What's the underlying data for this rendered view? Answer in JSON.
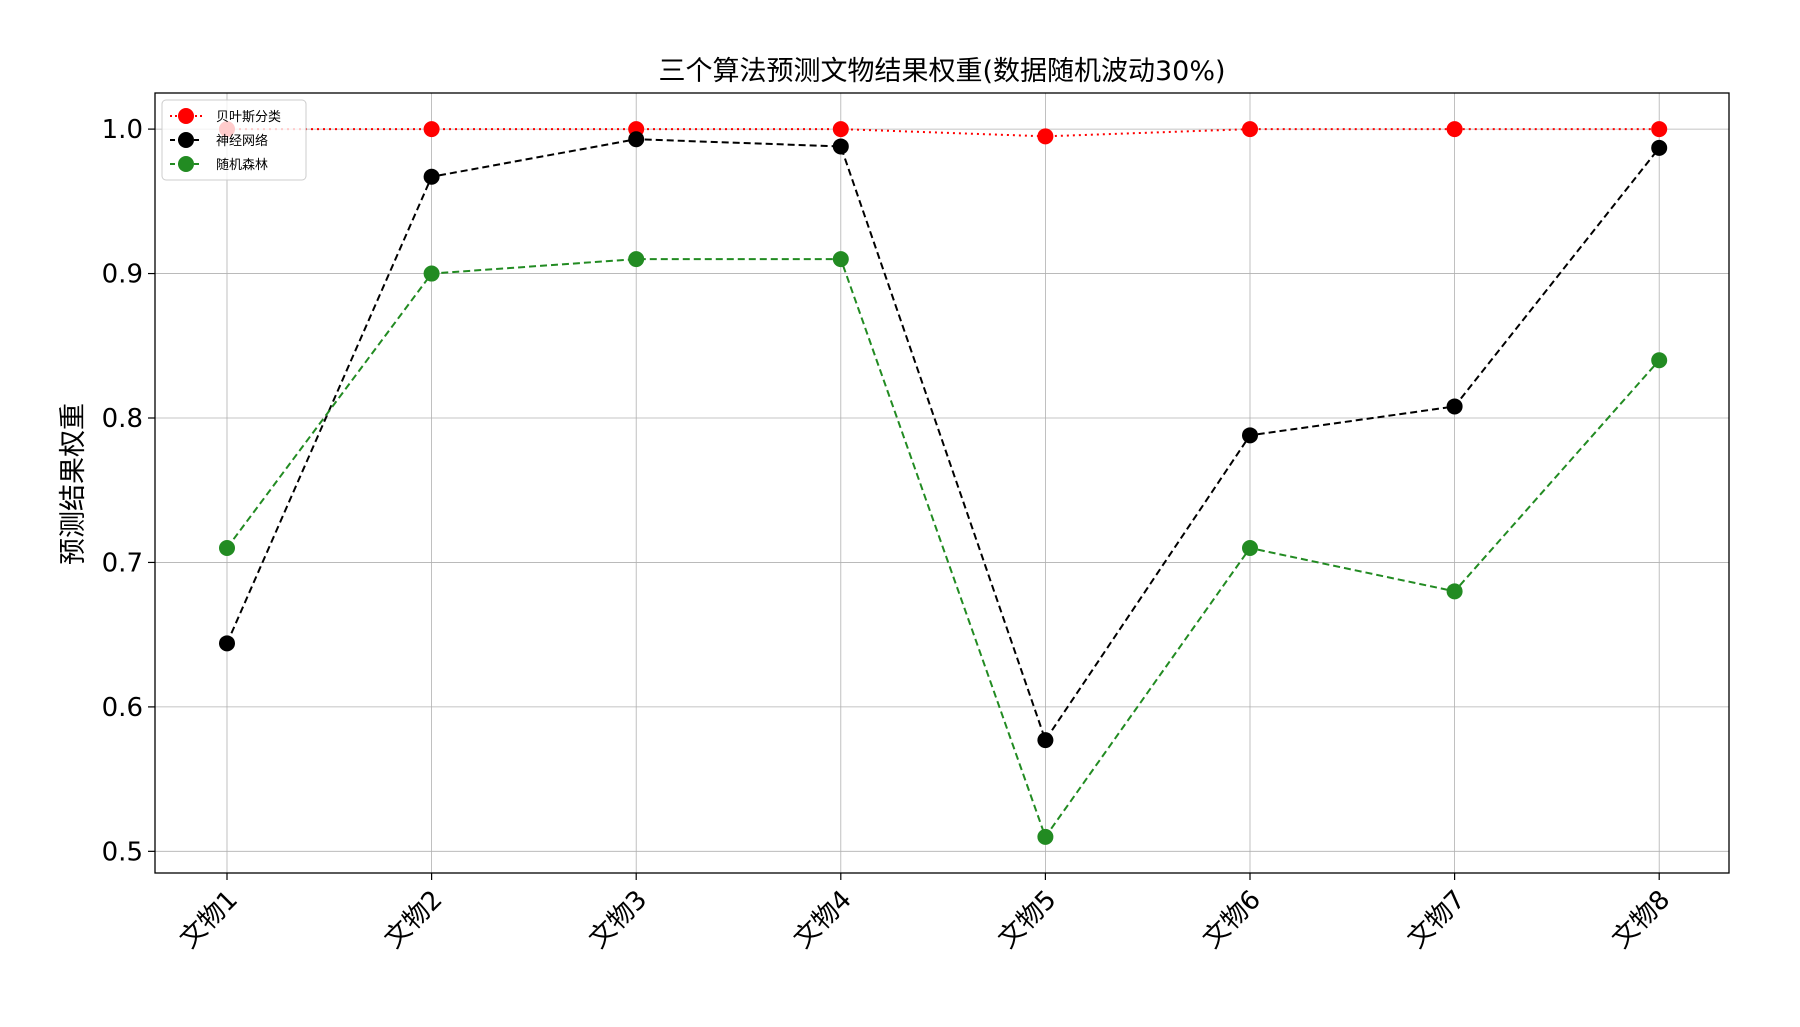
{
  "chart_data": {
    "type": "line",
    "title": "三个算法预测文物结果权重(数据随机波动30%)",
    "xlabel": "",
    "ylabel": "预测结果权重",
    "categories": [
      "文物1",
      "文物2",
      "文物3",
      "文物4",
      "文物5",
      "文物6",
      "文物7",
      "文物8"
    ],
    "yticks": [
      "0.5",
      "0.6",
      "0.7",
      "0.8",
      "0.9",
      "1.0"
    ],
    "ylim": [
      0.485,
      1.025
    ],
    "grid": true,
    "legend_position": "top-left",
    "series": [
      {
        "name": "贝叶斯分类",
        "color": "#ff0000",
        "linestyle": "dotted",
        "values": [
          1.0,
          1.0,
          1.0,
          1.0,
          0.995,
          1.0,
          1.0,
          1.0
        ]
      },
      {
        "name": "神经网络",
        "color": "#000000",
        "linestyle": "dashed",
        "values": [
          0.644,
          0.967,
          0.993,
          0.988,
          0.577,
          0.788,
          0.808,
          0.987
        ]
      },
      {
        "name": "随机森林",
        "color": "#228b22",
        "linestyle": "dashed",
        "values": [
          0.71,
          0.9,
          0.91,
          0.91,
          0.51,
          0.71,
          0.68,
          0.84
        ]
      }
    ]
  }
}
